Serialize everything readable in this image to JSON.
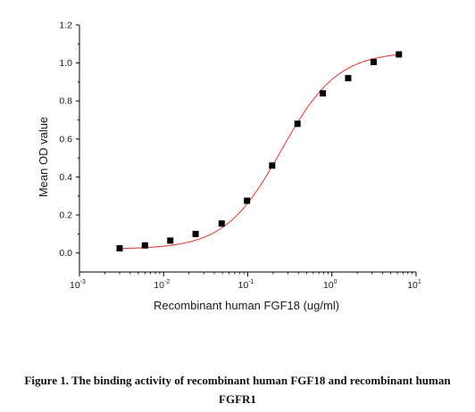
{
  "chart_data": {
    "type": "scatter",
    "title": "",
    "xlabel": "Recombinant human FGF18 (ug/ml)",
    "ylabel": "Mean OD value",
    "x_scale": "log",
    "xlim": [
      0.001,
      10
    ],
    "ylim": [
      -0.1,
      1.2
    ],
    "x_ticks": [
      0.001,
      0.01,
      0.1,
      1,
      10
    ],
    "x_tick_labels": [
      {
        "base": "10",
        "exp": "-3"
      },
      {
        "base": "10",
        "exp": "-2"
      },
      {
        "base": "10",
        "exp": "-1"
      },
      {
        "base": "10",
        "exp": "0"
      },
      {
        "base": "10",
        "exp": "1"
      }
    ],
    "y_ticks": [
      0.0,
      0.2,
      0.4,
      0.6,
      0.8,
      1.0,
      1.2
    ],
    "y_tick_labels": [
      "0.0",
      "0.2",
      "0.4",
      "0.6",
      "0.8",
      "1.0",
      "1.2"
    ],
    "grid": false,
    "series": [
      {
        "marker": "square",
        "color": "#000000",
        "x": [
          0.003,
          0.006,
          0.012,
          0.024,
          0.049,
          0.098,
          0.195,
          0.39,
          0.78,
          1.56,
          3.13,
          6.25
        ],
        "y": [
          0.025,
          0.04,
          0.065,
          0.1,
          0.155,
          0.275,
          0.46,
          0.68,
          0.84,
          0.92,
          1.005,
          1.045
        ]
      }
    ],
    "fit_curve": {
      "type": "4PL",
      "color": "#e0433c",
      "bottom": 0.02,
      "top": 1.06,
      "ec50": 0.25,
      "hill": 1.3
    }
  },
  "caption": {
    "line1": "Figure 1. The binding activity of recombinant human FGF18 and recombinant human",
    "line2": "FGFR1"
  }
}
